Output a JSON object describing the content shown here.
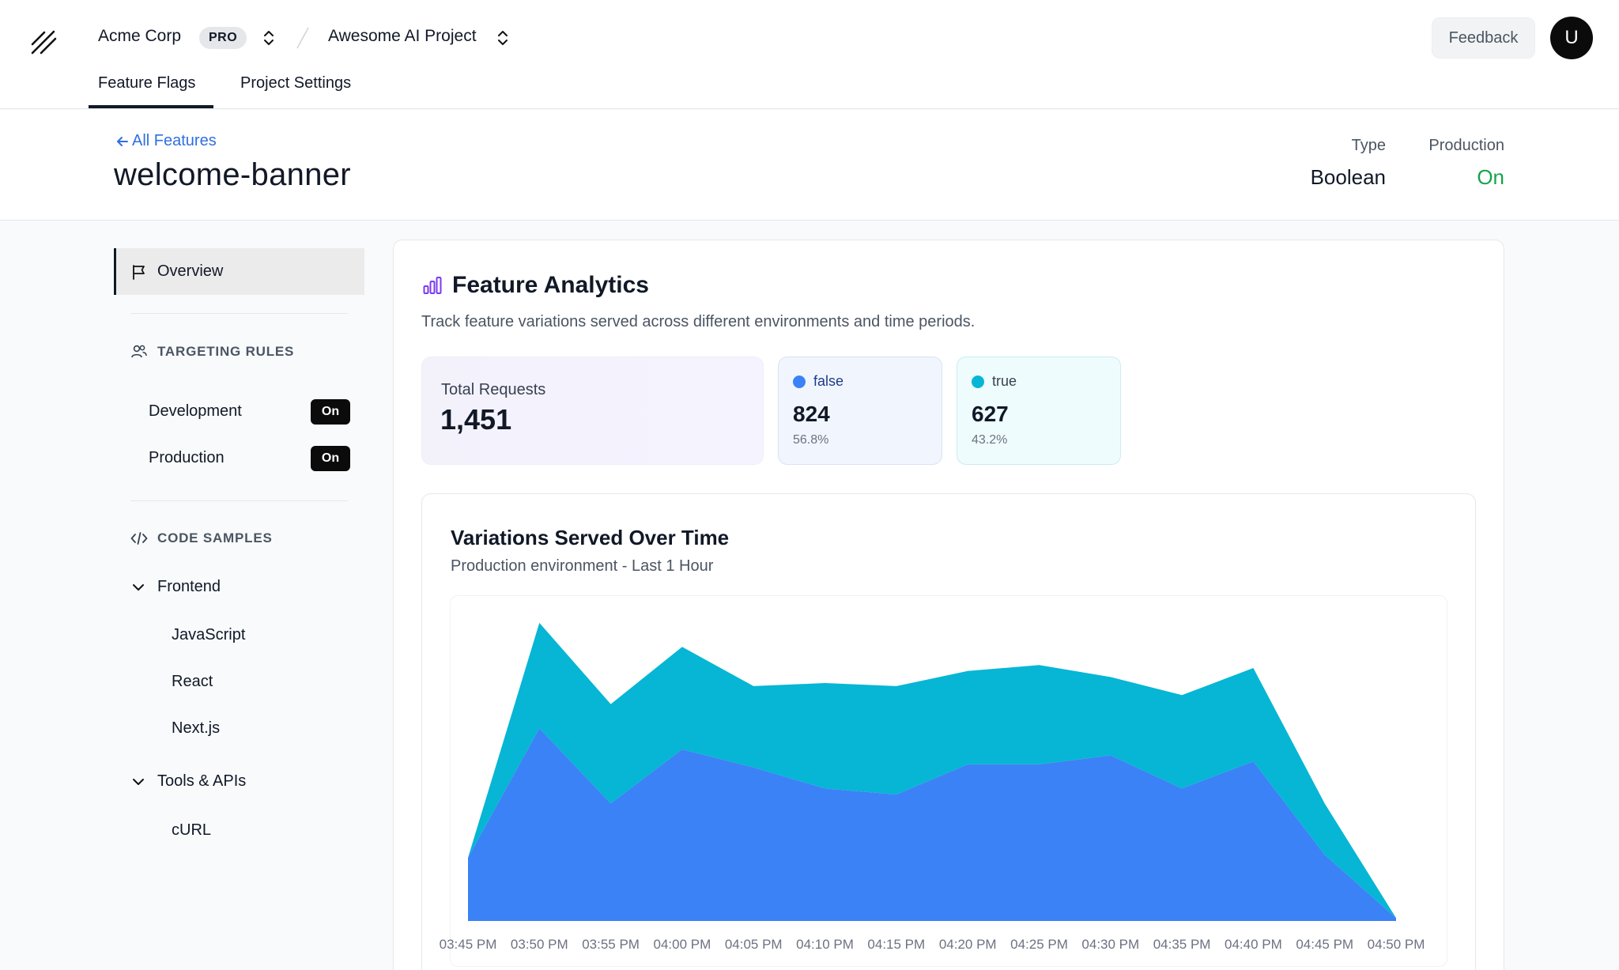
{
  "header": {
    "org_name": "Acme Corp",
    "plan_badge": "PRO",
    "project_name": "Awesome AI Project",
    "feedback_label": "Feedback",
    "avatar_initial": "U",
    "tabs": [
      {
        "label": "Feature Flags",
        "active": true
      },
      {
        "label": "Project Settings",
        "active": false
      }
    ],
    "icons": [
      "logo-slashes-icon",
      "chevron-up-down-icon",
      "slash-separator-icon"
    ]
  },
  "feature": {
    "back_label": "All Features",
    "key": "welcome-banner",
    "type_label": "Type",
    "type_value": "Boolean",
    "env_label": "Production",
    "env_status": "On",
    "env_status_color": "#16a34a"
  },
  "sidebar": {
    "overview_label": "Overview",
    "targeting_title": "TARGETING RULES",
    "environments": [
      {
        "name": "Development",
        "status": "On"
      },
      {
        "name": "Production",
        "status": "On"
      }
    ],
    "code_title": "CODE SAMPLES",
    "groups": [
      {
        "label": "Frontend",
        "items": [
          "JavaScript",
          "React",
          "Next.js"
        ]
      },
      {
        "label": "Tools & APIs",
        "items": [
          "cURL"
        ]
      }
    ]
  },
  "analytics": {
    "title": "Feature Analytics",
    "subtitle": "Track feature variations served across different environments and time periods.",
    "total_label": "Total Requests",
    "total_value": "1,451",
    "variations": [
      {
        "name": "false",
        "count": "824",
        "pct": "56.8%",
        "color": "#3b82f6"
      },
      {
        "name": "true",
        "count": "627",
        "pct": "43.2%",
        "color": "#06b6d4"
      }
    ]
  },
  "chart_data": {
    "type": "area",
    "stacked": true,
    "title": "Variations Served Over Time",
    "subtitle": "Production environment - Last 1 Hour",
    "x": [
      "03:45 PM",
      "03:50 PM",
      "03:55 PM",
      "04:00 PM",
      "04:05 PM",
      "04:10 PM",
      "04:15 PM",
      "04:20 PM",
      "04:25 PM",
      "04:30 PM",
      "04:35 PM",
      "04:40 PM",
      "04:45 PM",
      "04:50 PM"
    ],
    "series": [
      {
        "name": "false",
        "color": "#3b82f6",
        "values": [
          21,
          64,
          39,
          57,
          51,
          44,
          42,
          52,
          52,
          55,
          44,
          53,
          22,
          1
        ]
      },
      {
        "name": "true",
        "color": "#06b6d4",
        "values": [
          0,
          35,
          33,
          34,
          27,
          35,
          36,
          31,
          33,
          26,
          31,
          31,
          17,
          0
        ]
      }
    ],
    "ylim": [
      0,
      105
    ],
    "grid": false,
    "legend": "none"
  }
}
